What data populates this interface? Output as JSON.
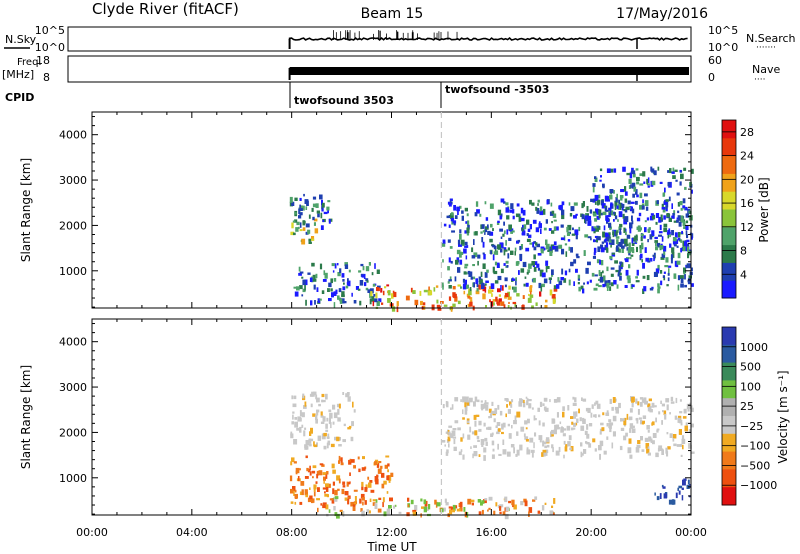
{
  "header": {
    "station": "Clyde River (fitACF)",
    "beam": "Beam 15",
    "date": "17/May/2016"
  },
  "colors": {
    "power": [
      "#1a1aff",
      "#1e3fb0",
      "#2b7a4a",
      "#4fa36a",
      "#8ac43a",
      "#d8d82a",
      "#f0a21a",
      "#ee6a10",
      "#e8380c",
      "#e01010"
    ],
    "velocity": [
      "#e01010",
      "#ee5010",
      "#f07a1a",
      "#f0aa22",
      "#c8c8c8",
      "#b0b0b0",
      "#70c040",
      "#3a8a5a",
      "#2a5aa0",
      "#2a3ab0"
    ],
    "velocity_gray": "#c8c8c8",
    "line": "#000000",
    "transition_line": "#c8c8c8"
  },
  "summary_panels": {
    "nsky": {
      "label": "N.Sky",
      "ticks": [
        "10^5",
        "10^0"
      ],
      "right_label": "N.Search",
      "right_ticks": [
        "10^5",
        "10^0"
      ]
    },
    "freq": {
      "label": "Freq.",
      "unit": "[MHz]",
      "ticks": [
        "18",
        "8"
      ],
      "right_label": "Nave",
      "right_ticks": [
        "60",
        "0"
      ]
    },
    "cpid": {
      "label": "CPID",
      "modes": [
        "twofsound 3503",
        "twofsound -3503"
      ]
    }
  },
  "chart_data": [
    {
      "type": "heatmap",
      "parameter": "Power",
      "xlabel": "",
      "ylabel": "Slant Range [km]",
      "xlim": [
        "00:00",
        "24:00"
      ],
      "ylim": [
        180,
        4500
      ],
      "x_ticks": [
        "00:00",
        "04:00",
        "08:00",
        "12:00",
        "16:00",
        "20:00",
        "00:00"
      ],
      "y_ticks": [
        1000,
        2000,
        3000,
        4000
      ],
      "colorbar": {
        "label": "Power [dB]",
        "ticks": [
          4,
          8,
          12,
          16,
          20,
          24,
          28
        ],
        "range": [
          0,
          30
        ]
      },
      "data_start": "07:55",
      "mode_change": "14:00",
      "echo_regions": [
        {
          "t_start": "07:55",
          "t_end": "09:30",
          "range_km": [
            2000,
            2700
          ],
          "level": "weak"
        },
        {
          "t_start": "07:55",
          "t_end": "09:00",
          "range_km": [
            1600,
            2200
          ],
          "level": "moderate"
        },
        {
          "t_start": "08:00",
          "t_end": "11:30",
          "range_km": [
            300,
            1200
          ],
          "level": "weak"
        },
        {
          "t_start": "11:00",
          "t_end": "18:30",
          "range_km": [
            200,
            700
          ],
          "level": "strong"
        },
        {
          "t_start": "14:00",
          "t_end": "24:00",
          "range_km": [
            600,
            2600
          ],
          "level": "weak"
        },
        {
          "t_start": "20:00",
          "t_end": "24:00",
          "range_km": [
            1500,
            3300
          ],
          "level": "weak"
        }
      ]
    },
    {
      "type": "heatmap",
      "parameter": "Velocity",
      "xlabel": "Time UT",
      "ylabel": "Slant Range [km]",
      "xlim": [
        "00:00",
        "24:00"
      ],
      "ylim": [
        180,
        4500
      ],
      "x_ticks": [
        "00:00",
        "04:00",
        "08:00",
        "12:00",
        "16:00",
        "20:00",
        "00:00"
      ],
      "y_ticks": [
        1000,
        2000,
        3000,
        4000
      ],
      "colorbar": {
        "label": "Velocity [m s⁻¹]",
        "ticks": [
          "1000",
          "500",
          "100",
          "25",
          "−25",
          "−100",
          "−500",
          "−1000"
        ]
      },
      "data_start": "07:55",
      "mode_change": "14:00",
      "echo_regions": [
        {
          "t_start": "07:55",
          "t_end": "10:30",
          "range_km": [
            1700,
            2900
          ],
          "velocity": "near-zero (gray)"
        },
        {
          "t_start": "07:55",
          "t_end": "12:00",
          "range_km": [
            400,
            1500
          ],
          "velocity": "-100 to -500"
        },
        {
          "t_start": "09:00",
          "t_end": "18:30",
          "range_km": [
            200,
            600
          ],
          "velocity": "-100 to -500 with +25 to +100 patches"
        },
        {
          "t_start": "14:00",
          "t_end": "24:00",
          "range_km": [
            1500,
            2800
          ],
          "velocity": "near-zero (gray)"
        },
        {
          "t_start": "22:30",
          "t_end": "24:00",
          "range_km": [
            500,
            1000
          ],
          "velocity": "+500"
        }
      ]
    }
  ]
}
